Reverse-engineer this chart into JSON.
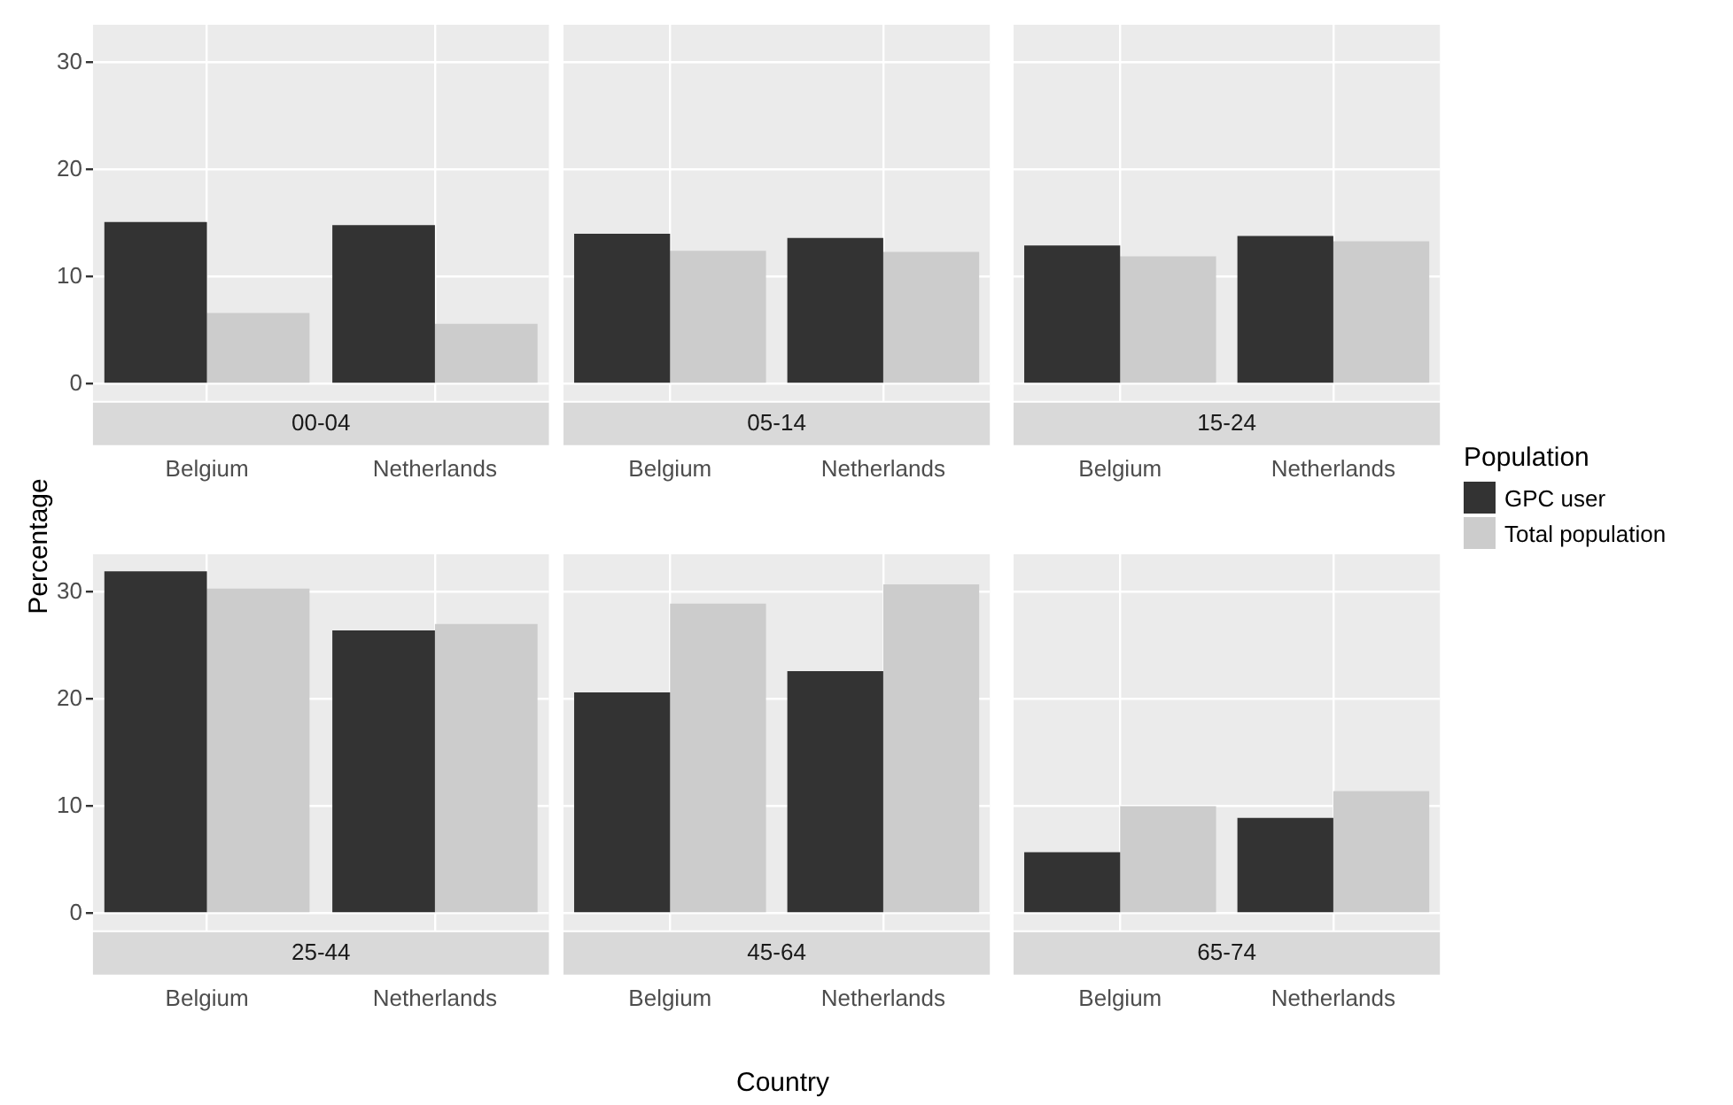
{
  "chart_data": [
    {
      "type": "bar",
      "title": "00-04",
      "ylabel": "Percentage",
      "legend_title": "Population",
      "legend": "right",
      "categories": [
        "Belgium",
        "Netherlands"
      ],
      "series": [
        {
          "name": "GPC user",
          "color": "#333333",
          "values": [
            15.1,
            14.8
          ]
        },
        {
          "name": "Total population",
          "color": "#cccccc",
          "values": [
            6.6,
            5.6
          ]
        }
      ],
      "ylim": [
        -1.6,
        33.5
      ],
      "yticks": [
        0,
        10,
        20,
        30
      ],
      "grid": true
    },
    {
      "type": "bar",
      "title": "05-14",
      "categories": [
        "Belgium",
        "Netherlands"
      ],
      "series": [
        {
          "color": "#333333",
          "values": [
            14.0,
            13.6
          ]
        },
        {
          "color": "#cccccc",
          "values": [
            12.4,
            12.3
          ]
        }
      ],
      "ylim": [
        -1.6,
        33.5
      ],
      "yticks": [
        0,
        10,
        20,
        30
      ],
      "grid": true,
      "tick_labels": "x"
    },
    {
      "type": "bar",
      "title": "15-24",
      "categories": [
        "Belgium",
        "Netherlands"
      ],
      "series": [
        {
          "color": "#333333",
          "values": [
            12.9,
            13.8
          ]
        },
        {
          "color": "#cccccc",
          "values": [
            11.9,
            13.3
          ]
        }
      ],
      "ylim": [
        -1.6,
        33.5
      ],
      "yticks": [
        0,
        10,
        20,
        30
      ],
      "grid": true,
      "tick_labels": "x"
    },
    {
      "type": "bar",
      "title": "25-44",
      "categories": [
        "Belgium",
        "Netherlands"
      ],
      "series": [
        {
          "color": "#333333",
          "values": [
            31.9,
            26.4
          ]
        },
        {
          "color": "#cccccc",
          "values": [
            30.3,
            27.0
          ]
        }
      ],
      "ylim": [
        -1.6,
        33.5
      ],
      "yticks": [
        0,
        10,
        20,
        30
      ],
      "grid": true
    },
    {
      "type": "bar",
      "title": "45-64",
      "xlabel": "Country",
      "categories": [
        "Belgium",
        "Netherlands"
      ],
      "series": [
        {
          "color": "#333333",
          "values": [
            20.6,
            22.6
          ]
        },
        {
          "color": "#cccccc",
          "values": [
            28.9,
            30.7
          ]
        }
      ],
      "ylim": [
        -1.6,
        33.5
      ],
      "yticks": [
        0,
        10,
        20,
        30
      ],
      "grid": true,
      "tick_labels": "x"
    },
    {
      "type": "bar",
      "title": "65-74",
      "categories": [
        "Belgium",
        "Netherlands"
      ],
      "series": [
        {
          "color": "#333333",
          "values": [
            5.7,
            8.9
          ]
        },
        {
          "color": "#cccccc",
          "values": [
            10.0,
            11.4
          ]
        }
      ],
      "ylim": [
        -1.6,
        33.5
      ],
      "yticks": [
        0,
        10,
        20,
        30
      ],
      "grid": true,
      "tick_labels": "x"
    }
  ]
}
